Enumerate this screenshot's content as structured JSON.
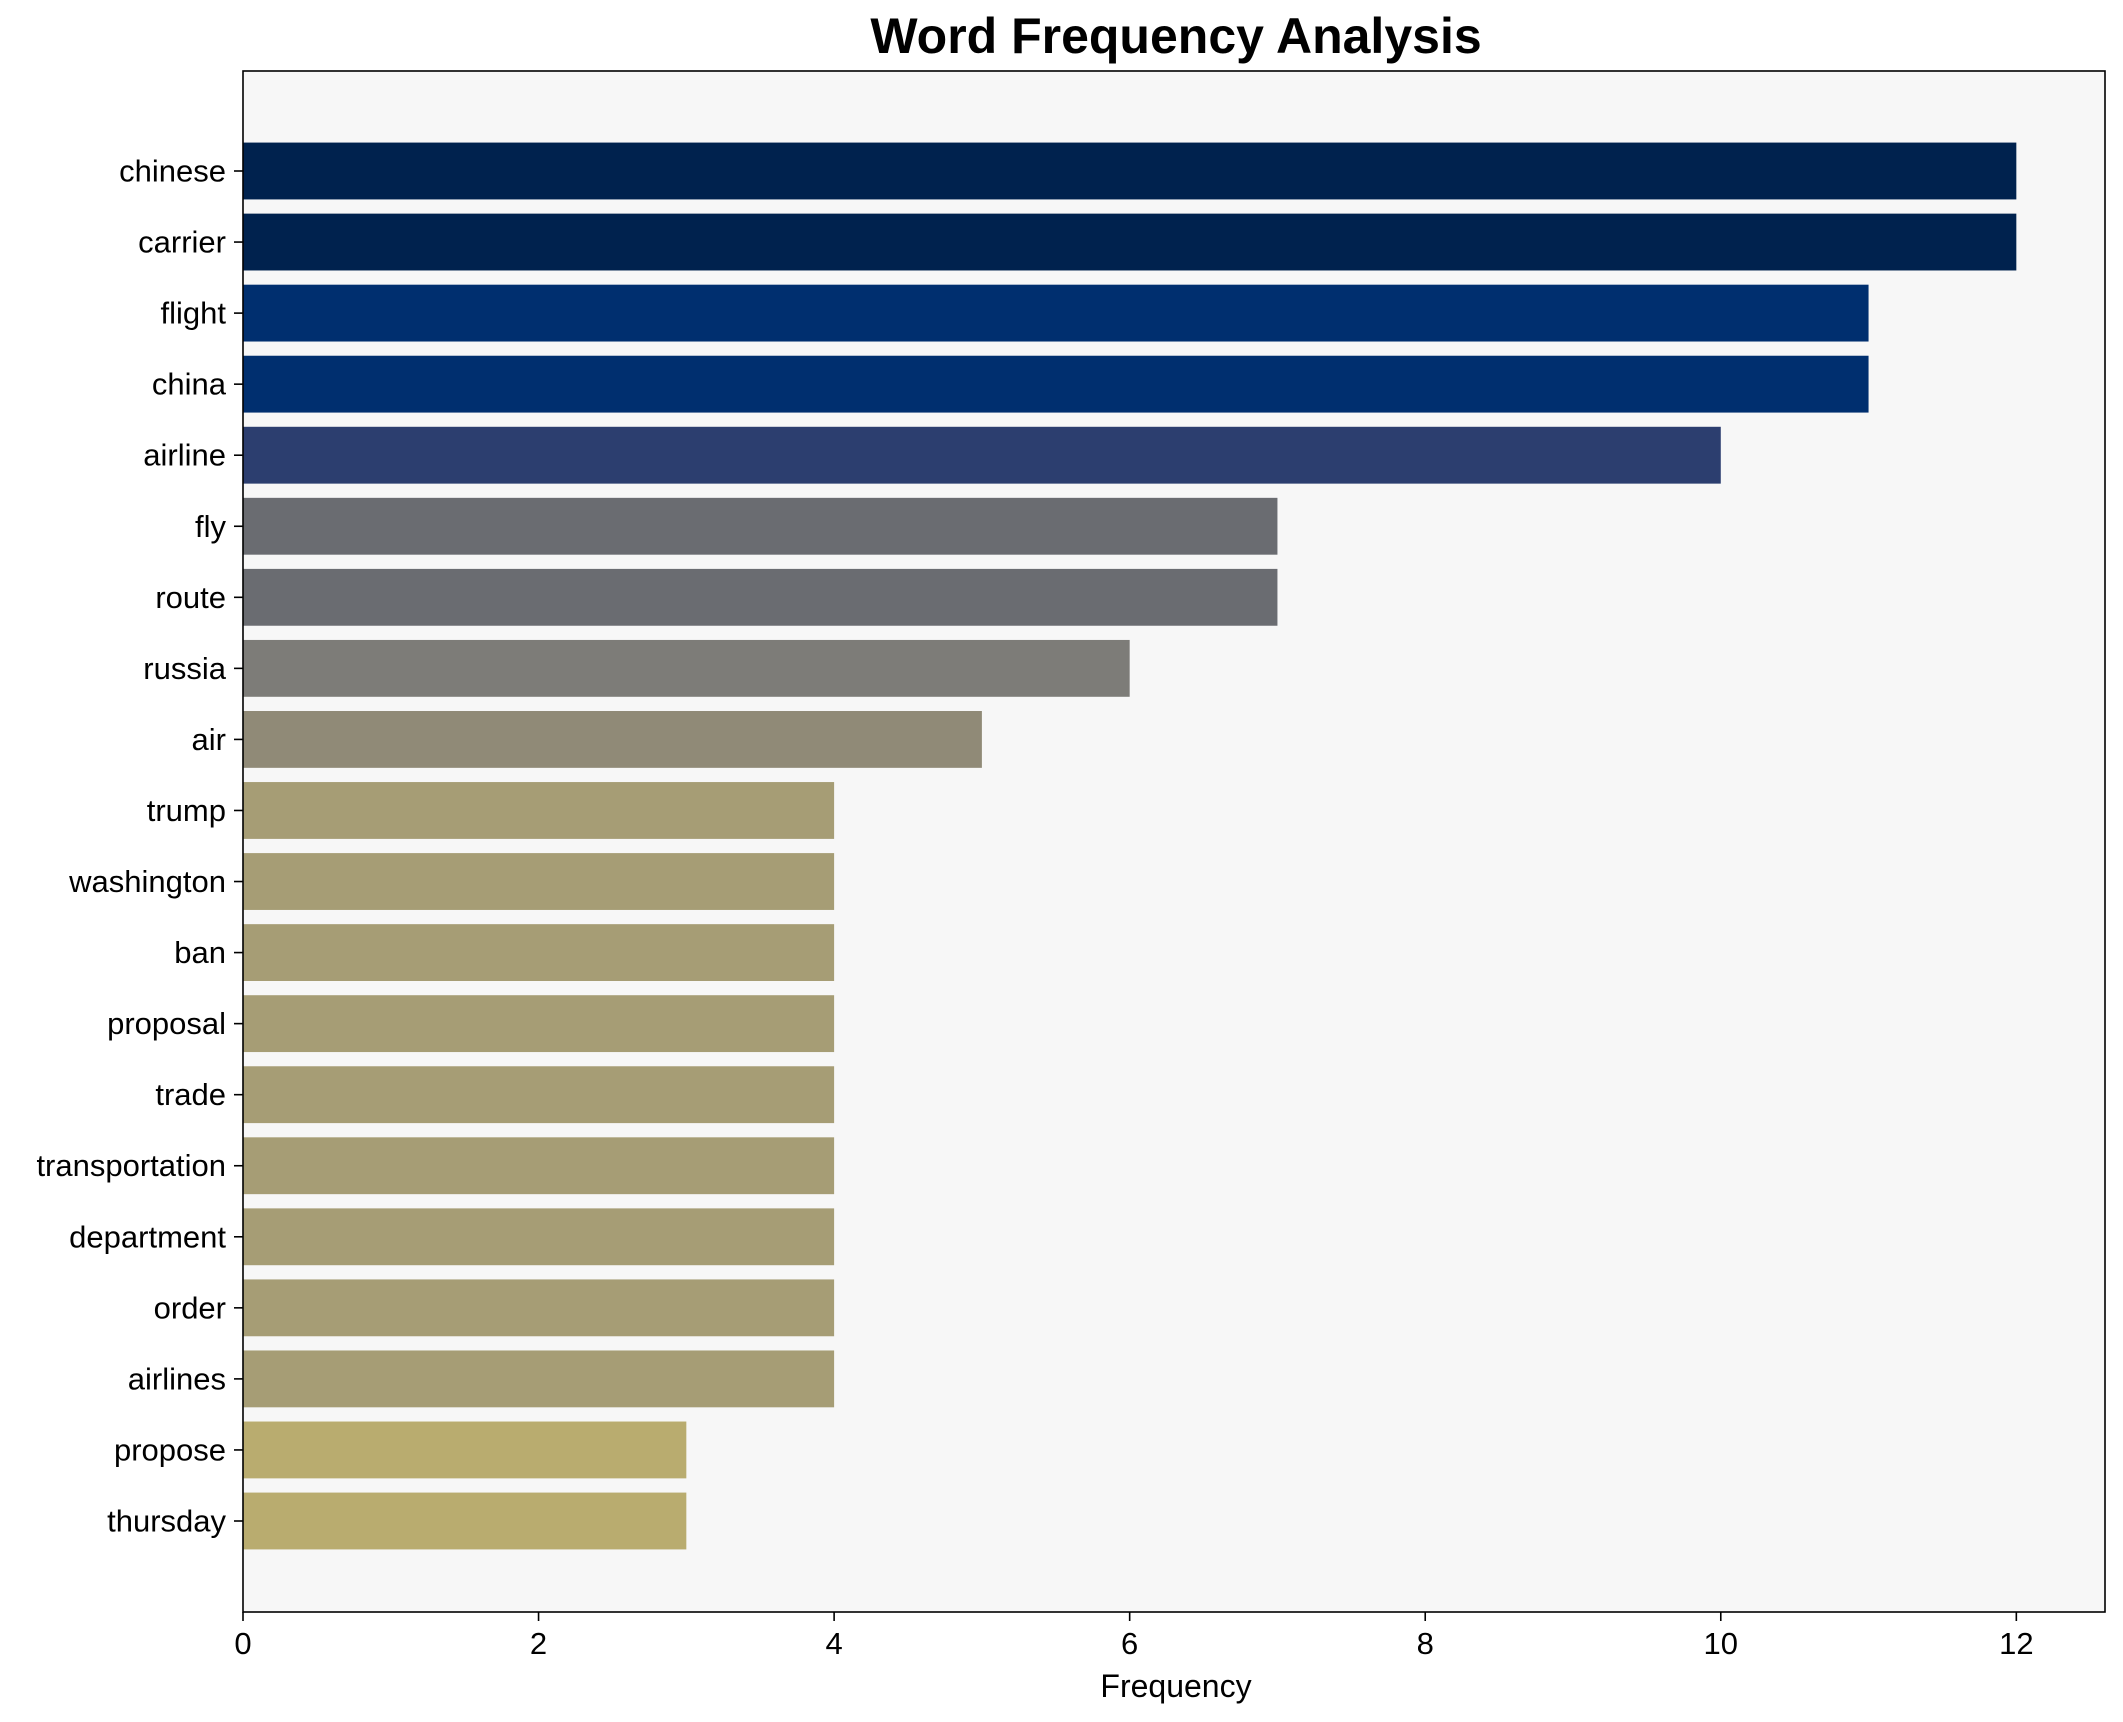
{
  "chart_data": {
    "type": "bar",
    "orientation": "horizontal",
    "title": "Word Frequency Analysis",
    "xlabel": "Frequency",
    "ylabel": "",
    "xlim": [
      0,
      12.6
    ],
    "xticks": [
      0,
      2,
      4,
      6,
      8,
      10,
      12
    ],
    "grid": false,
    "categories": [
      "chinese",
      "carrier",
      "flight",
      "china",
      "airline",
      "fly",
      "route",
      "russia",
      "air",
      "trump",
      "washington",
      "ban",
      "proposal",
      "trade",
      "transportation",
      "department",
      "order",
      "airlines",
      "propose",
      "thursday"
    ],
    "values": [
      12,
      12,
      11,
      11,
      10,
      7,
      7,
      6,
      5,
      4,
      4,
      4,
      4,
      4,
      4,
      4,
      4,
      4,
      3,
      3
    ],
    "colors": [
      "#00224e",
      "#00224e",
      "#002f6f",
      "#002f6f",
      "#2c3e6f",
      "#6a6c71",
      "#6a6c71",
      "#7d7c78",
      "#908a77",
      "#a69d75",
      "#a69d75",
      "#a69d75",
      "#a69d75",
      "#a69d75",
      "#a69d75",
      "#a69d75",
      "#a69d75",
      "#a69d75",
      "#b9ac6f",
      "#b9ac6f"
    ],
    "plot_background": "#f7f7f7"
  }
}
